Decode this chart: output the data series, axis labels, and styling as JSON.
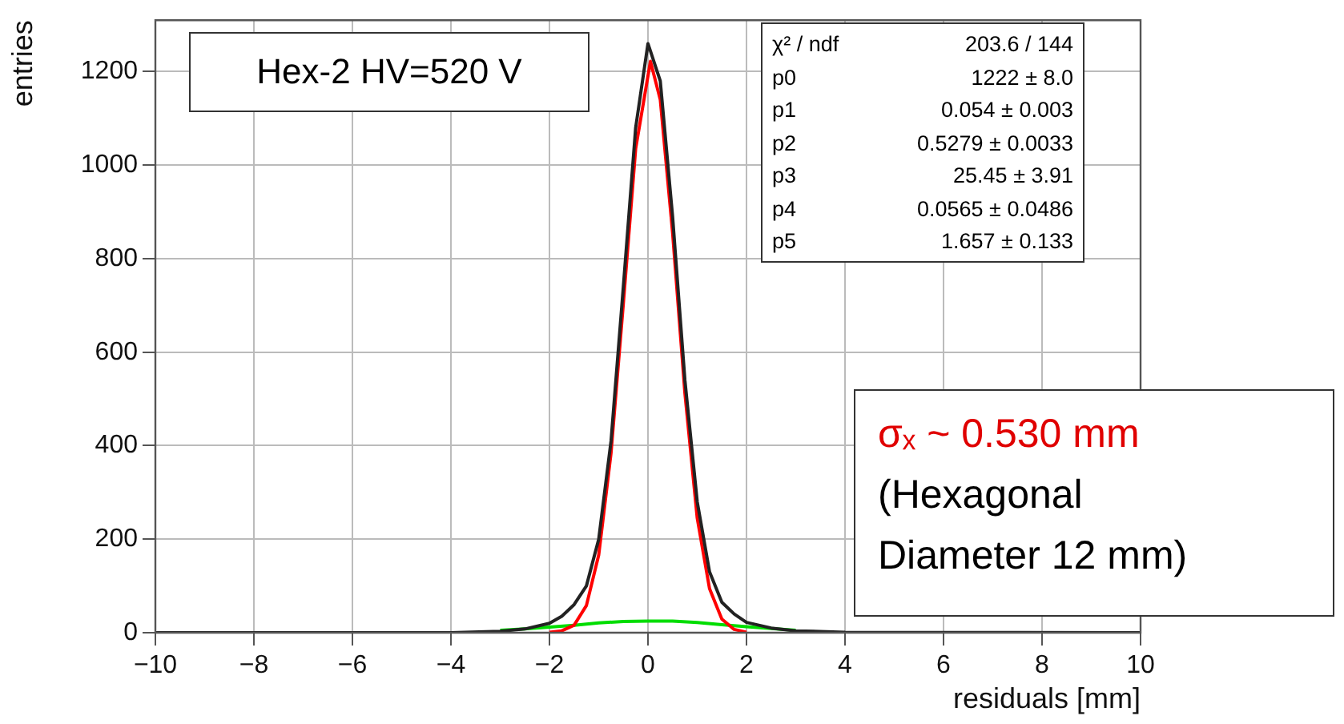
{
  "chart_data": {
    "type": "line",
    "xlabel": "residuals [mm]",
    "ylabel": "entries",
    "xlim": [
      -10,
      10
    ],
    "xticks": [
      -10,
      -8,
      -6,
      -4,
      -2,
      0,
      2,
      4,
      6,
      8,
      10
    ],
    "ylim": [
      0,
      1310
    ],
    "yticks": [
      0,
      200,
      400,
      600,
      800,
      1000,
      1200
    ],
    "grid": true,
    "marker": "none",
    "series": [
      {
        "type": "line",
        "color": "#222222",
        "x": [
          -10,
          -4,
          -3,
          -2.5,
          -2,
          -1.75,
          -1.5,
          -1.25,
          -1,
          -0.75,
          -0.5,
          -0.25,
          0,
          0.25,
          0.5,
          0.75,
          1,
          1.25,
          1.5,
          1.75,
          2,
          2.5,
          3,
          4,
          10
        ],
        "values": [
          0,
          0,
          3,
          8,
          20,
          35,
          60,
          100,
          200,
          410,
          740,
          1080,
          1260,
          1180,
          890,
          540,
          280,
          130,
          65,
          40,
          22,
          10,
          4,
          1,
          0
        ]
      },
      {
        "type": "line",
        "color": "#ff0000",
        "x": [
          -2,
          -1.75,
          -1.5,
          -1.25,
          -1,
          -0.75,
          -0.5,
          -0.25,
          0.05,
          0.25,
          0.5,
          0.75,
          1,
          1.25,
          1.5,
          1.75,
          2
        ],
        "values": [
          1,
          4,
          16,
          58,
          166,
          384,
          704,
          1035,
          1222,
          1140,
          855,
          512,
          245,
          94,
          29,
          7,
          1
        ]
      },
      {
        "type": "line",
        "color": "#00dd00",
        "x": [
          -3,
          -2.5,
          -2,
          -1.5,
          -1,
          -0.5,
          0,
          0.5,
          1,
          1.5,
          2,
          2.5,
          3
        ],
        "values": [
          5,
          8,
          12,
          16,
          21,
          24,
          25,
          25,
          22,
          17,
          13,
          9,
          5
        ]
      }
    ],
    "annotations": [
      "Hex-2 HV=520 V",
      "χ² / ndf",
      "203.6 / 144",
      "p0",
      "1222 ± 8.0",
      "p1",
      "0.054 ± 0.003",
      "p2",
      "0.5279 ± 0.0033",
      "p3",
      "25.45 ± 3.91",
      "p4",
      "0.0565 ± 0.0486",
      "p5",
      "1.657 ± 0.133",
      "σₓ ~ 0.530 mm",
      "(Hexagonal Diameter 12 mm)"
    ]
  }
}
